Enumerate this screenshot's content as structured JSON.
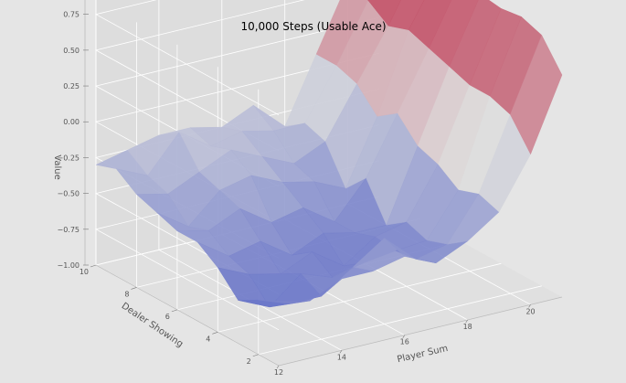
{
  "chart_data": {
    "type": "surface",
    "title": "10,000 Steps (Usable Ace)",
    "xlabel": "Player Sum",
    "ylabel": "Dealer Showing",
    "zlabel": "Value",
    "x_ticks": [
      "12",
      "14",
      "16",
      "18",
      "20"
    ],
    "y_ticks": [
      "2",
      "4",
      "6",
      "8",
      "10"
    ],
    "z_ticks": [
      "−1.00",
      "−0.75",
      "−0.50",
      "−0.25",
      "0.00",
      "0.25",
      "0.50",
      "0.75"
    ],
    "x": [
      12,
      13,
      14,
      15,
      16,
      17,
      18,
      19,
      20,
      21
    ],
    "y": [
      1,
      2,
      3,
      4,
      5,
      6,
      7,
      8,
      9,
      10
    ],
    "zlim": [
      -1.0,
      0.85
    ],
    "grid": true,
    "colormap": "coolwarm",
    "z": [
      [
        -0.55,
        -0.6,
        -0.5,
        -0.5,
        -0.45,
        -0.55,
        -0.45,
        -0.3,
        0.05,
        0.55
      ],
      [
        -0.62,
        -0.7,
        -0.7,
        -0.55,
        -0.4,
        -0.6,
        -0.55,
        -0.25,
        0.25,
        0.75
      ],
      [
        -0.7,
        -0.8,
        -0.62,
        -0.7,
        -0.65,
        -0.62,
        -0.6,
        -0.3,
        0.3,
        0.8
      ],
      [
        -0.55,
        -0.65,
        -0.7,
        -0.6,
        -0.75,
        -0.6,
        -0.55,
        -0.2,
        0.3,
        0.78
      ],
      [
        -0.45,
        -0.6,
        -0.55,
        -0.7,
        -0.6,
        -0.65,
        -0.65,
        -0.15,
        0.35,
        0.8
      ],
      [
        -0.45,
        -0.5,
        -0.4,
        -0.55,
        -0.5,
        -0.65,
        -0.4,
        0.0,
        0.4,
        0.82
      ],
      [
        -0.4,
        -0.55,
        -0.35,
        -0.3,
        -0.4,
        -0.45,
        -0.55,
        -0.1,
        0.45,
        0.82
      ],
      [
        -0.35,
        -0.4,
        -0.3,
        -0.2,
        -0.3,
        -0.4,
        -0.3,
        0.05,
        0.4,
        0.8
      ],
      [
        -0.25,
        -0.35,
        -0.1,
        -0.25,
        -0.2,
        -0.25,
        -0.25,
        0.1,
        0.5,
        0.85
      ],
      [
        -0.3,
        -0.25,
        -0.2,
        -0.2,
        -0.25,
        -0.15,
        -0.35,
        0.1,
        0.55,
        0.85
      ]
    ]
  }
}
